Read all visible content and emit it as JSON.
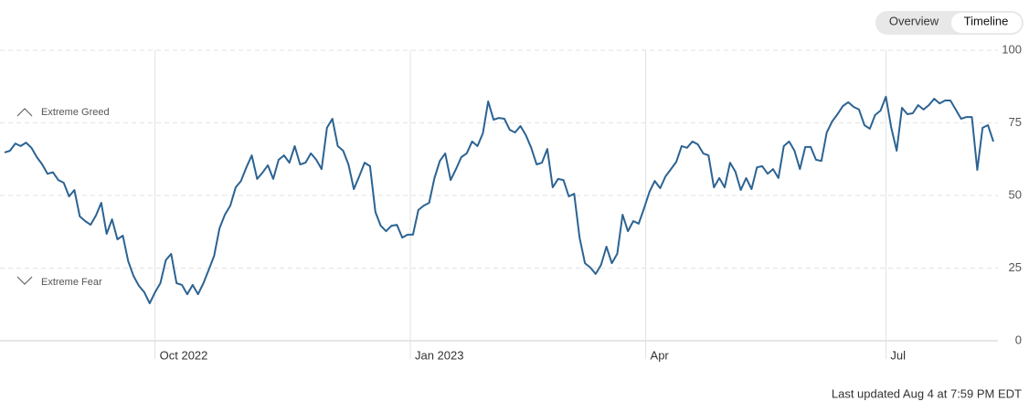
{
  "controls": [
    "Overview",
    "Timeline"
  ],
  "footer": "Last updated Aug 4 at 7:59 PM EDT",
  "chart_data": {
    "type": "line",
    "annotations": [
      "Extreme Greed",
      "Extreme Fear"
    ],
    "color": "#2c6392",
    "values": [
      64.8,
      65.4,
      67.9,
      67,
      68.2,
      66.4,
      63.2,
      60.7,
      57.5,
      58,
      55.3,
      54.4,
      49.7,
      51.9,
      42.8,
      41.2,
      39.9,
      43.1,
      47.5,
      36.8,
      41.8,
      34.9,
      36.2,
      27.4,
      22.3,
      18.9,
      16.7,
      12.9,
      16.7,
      19.8,
      27.7,
      29.9,
      19.8,
      19.2,
      16,
      19.2,
      16,
      19.8,
      24.5,
      29.2,
      38.7,
      43.4,
      46.5,
      52.8,
      55,
      59.7,
      63.8,
      55.7,
      57.9,
      60.4,
      55.7,
      62.3,
      63.8,
      61.3,
      67,
      60.7,
      61.3,
      64.5,
      62.3,
      59.1,
      73.3,
      76.4,
      67,
      65.4,
      60.7,
      52.2,
      56.6,
      61.3,
      60.1,
      44.3,
      39.6,
      37.7,
      39.6,
      39.9,
      35.5,
      36.5,
      36.5,
      45,
      46.5,
      47.5,
      56,
      61.9,
      64.5,
      55.3,
      59.1,
      63.2,
      64.5,
      68.6,
      67,
      71.4,
      82.4,
      76.1,
      76.7,
      76.4,
      72.6,
      71.7,
      73.9,
      70.8,
      66.4,
      60.7,
      61.3,
      66,
      52.8,
      55.7,
      55.3,
      49.7,
      50.6,
      35.5,
      26.7,
      25.2,
      23,
      26.1,
      32.4,
      26.7,
      29.9,
      43.4,
      37.7,
      41.2,
      40.3,
      45.6,
      51.3,
      55,
      52.5,
      56.6,
      59.1,
      61.6,
      67,
      66.4,
      68.6,
      67.6,
      64.5,
      63.8,
      52.8,
      56,
      52.8,
      61.3,
      58.2,
      51.9,
      56,
      52.2,
      59.7,
      60.1,
      57.5,
      59.1,
      56,
      67,
      68.6,
      65.4,
      59.1,
      66.7,
      66.7,
      62.3,
      61.9,
      71.7,
      75.5,
      78,
      80.8,
      82.1,
      80.5,
      79.6,
      74.2,
      73,
      77.7,
      79.2,
      84,
      73.3,
      65.4,
      80.2,
      78,
      78.3,
      81.1,
      79.6,
      81.1,
      83.3,
      81.7,
      82.7,
      82.7,
      79.6,
      76.4,
      77,
      77,
      58.8,
      73.3,
      74.2,
      68.6
    ],
    "xlim": [
      0,
      184
    ],
    "xticks": [
      {
        "value": 28,
        "label": "Oct 2022"
      },
      {
        "value": 75.5,
        "label": "Jan 2023"
      },
      {
        "value": 119.3,
        "label": "Apr"
      },
      {
        "value": 164,
        "label": "Jul"
      }
    ],
    "ylim": [
      0,
      100
    ],
    "yticks": [
      0,
      25,
      50,
      75,
      100
    ],
    "grid": true
  }
}
